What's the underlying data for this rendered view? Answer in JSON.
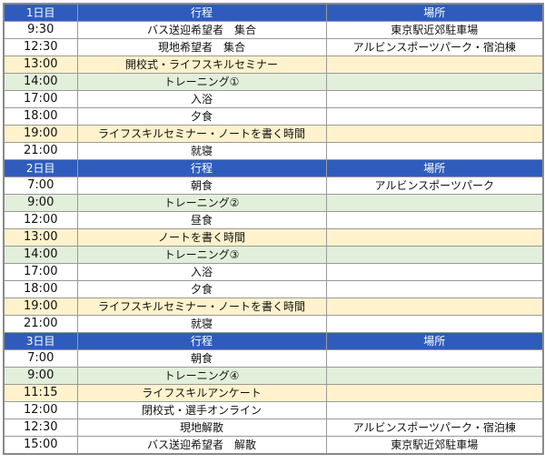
{
  "colors": {
    "header": "#2f5cbc",
    "yellow": "#fff2cc",
    "green": "#e2efda"
  },
  "days": [
    {
      "label": "1日目",
      "col_activity": "行程",
      "col_place": "場所",
      "rows": [
        {
          "time": "9:30",
          "activity": "バス送迎希望者　集合",
          "place": "東京駅近郊駐車場",
          "style": "white"
        },
        {
          "time": "12:30",
          "activity": "現地希望者　集合",
          "place": "アルビンスポーツパーク・宿泊棟",
          "style": "white"
        },
        {
          "time": "13:00",
          "activity": "開校式・ライフスキルセミナー",
          "place": "",
          "style": "yellow"
        },
        {
          "time": "14:00",
          "activity": "トレーニング①",
          "place": "",
          "style": "green"
        },
        {
          "time": "17:00",
          "activity": "入浴",
          "place": "",
          "style": "white"
        },
        {
          "time": "18:00",
          "activity": "夕食",
          "place": "",
          "style": "white"
        },
        {
          "time": "19:00",
          "activity": "ライフスキルセミナー・ノートを書く時間",
          "place": "",
          "style": "yellow"
        },
        {
          "time": "21:00",
          "activity": "就寝",
          "place": "",
          "style": "white"
        }
      ]
    },
    {
      "label": "2日目",
      "col_activity": "行程",
      "col_place": "場所",
      "rows": [
        {
          "time": "7:00",
          "activity": "朝食",
          "place": "アルビンスポーツパーク",
          "style": "white"
        },
        {
          "time": "9:00",
          "activity": "トレーニング②",
          "place": "",
          "style": "green"
        },
        {
          "time": "12:00",
          "activity": "昼食",
          "place": "",
          "style": "white"
        },
        {
          "time": "13:00",
          "activity": "ノートを書く時間",
          "place": "",
          "style": "yellow"
        },
        {
          "time": "14:00",
          "activity": "トレーニング③",
          "place": "",
          "style": "green"
        },
        {
          "time": "17:00",
          "activity": "入浴",
          "place": "",
          "style": "white"
        },
        {
          "time": "18:00",
          "activity": "夕食",
          "place": "",
          "style": "white"
        },
        {
          "time": "19:00",
          "activity": "ライフスキルセミナー・ノートを書く時間",
          "place": "",
          "style": "yellow"
        },
        {
          "time": "21:00",
          "activity": "就寝",
          "place": "",
          "style": "white"
        }
      ]
    },
    {
      "label": "3日目",
      "col_activity": "行程",
      "col_place": "場所",
      "rows": [
        {
          "time": "7:00",
          "activity": "朝食",
          "place": "",
          "style": "white"
        },
        {
          "time": "9:00",
          "activity": "トレーニング④",
          "place": "",
          "style": "green"
        },
        {
          "time": "11:15",
          "activity": "ライフスキルアンケート",
          "place": "",
          "style": "yellow"
        },
        {
          "time": "12:00",
          "activity": "閉校式・選手オンライン",
          "place": "",
          "style": "white"
        },
        {
          "time": "12:30",
          "activity": "現地解散",
          "place": "アルビンスポーツパーク・宿泊棟",
          "style": "white"
        },
        {
          "time": "15:00",
          "activity": "バス送迎希望者　解散",
          "place": "東京駅近郊駐車場",
          "style": "white"
        }
      ]
    }
  ]
}
